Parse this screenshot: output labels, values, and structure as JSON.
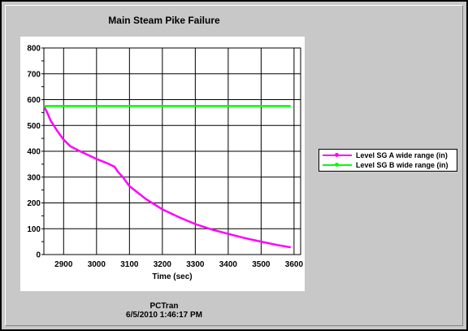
{
  "chart_data": {
    "type": "line",
    "title": "Main Steam Pike Failure",
    "xlabel": "Time (sec)",
    "ylabel": "",
    "xlim": [
      2840,
      3620
    ],
    "ylim": [
      0,
      800
    ],
    "x_ticks": [
      2900,
      3000,
      3100,
      3200,
      3300,
      3400,
      3500,
      3600
    ],
    "y_ticks": [
      0,
      100,
      200,
      300,
      400,
      500,
      600,
      700,
      800
    ],
    "grid": true,
    "legend_position": "right",
    "series": [
      {
        "name": "Level SG A wide range (in)",
        "color": "#ff00ff",
        "x": [
          2840,
          2850,
          2860,
          2880,
          2900,
          2920,
          2950,
          3000,
          3030,
          3055,
          3065,
          3080,
          3100,
          3150,
          3200,
          3250,
          3300,
          3350,
          3400,
          3450,
          3500,
          3550,
          3590
        ],
        "y": [
          575,
          550,
          520,
          480,
          445,
          420,
          400,
          370,
          355,
          340,
          320,
          300,
          265,
          215,
          175,
          145,
          118,
          97,
          80,
          64,
          50,
          37,
          28
        ]
      },
      {
        "name": "Level SG B wide range (in)",
        "color": "#00ff00",
        "x": [
          2840,
          3590
        ],
        "y": [
          575,
          575
        ]
      }
    ]
  },
  "footer": {
    "line1": "PCTran",
    "line2": "6/5/2010 1:46:17 PM"
  }
}
